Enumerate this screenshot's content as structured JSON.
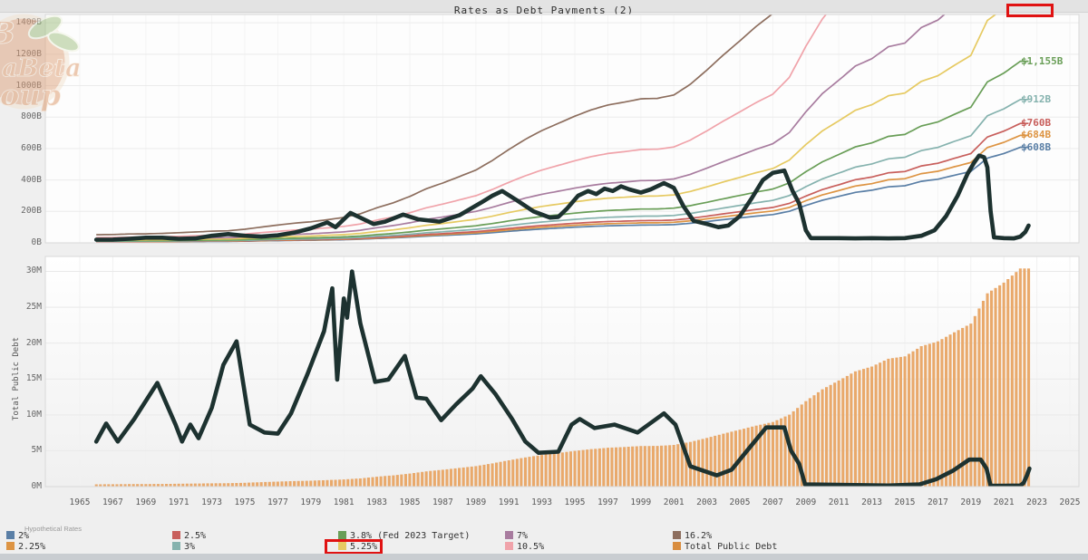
{
  "chart_title": "Rates as Debt Payments (2)",
  "watermark": {
    "visible_text_top": "aBeta",
    "visible_text_bottom": "oup"
  },
  "annotations": {
    "top_right_box": "empty red box at top-right where the 5.25% line exits the chart",
    "legend_box_target": "5.25%"
  },
  "legend": {
    "header": "Hypothetical Rates",
    "items": [
      {
        "label": "2%",
        "color": "#5a7fa6",
        "col": 0,
        "row": 0,
        "highlighted": false
      },
      {
        "label": "2.25%",
        "color": "#dd9443",
        "col": 0,
        "row": 1,
        "highlighted": false
      },
      {
        "label": "2.5%",
        "color": "#c85f5c",
        "col": 1,
        "row": 0,
        "highlighted": false
      },
      {
        "label": "3%",
        "color": "#85b2ae",
        "col": 1,
        "row": 1,
        "highlighted": false
      },
      {
        "label": "3.8% (Fed 2023 Target)",
        "color": "#699e57",
        "col": 2,
        "row": 0,
        "highlighted": false
      },
      {
        "label": "5.25%",
        "color": "#e6ca62",
        "col": 2,
        "row": 1,
        "highlighted": true
      },
      {
        "label": "7%",
        "color": "#a87c9f",
        "col": 3,
        "row": 0,
        "highlighted": false
      },
      {
        "label": "10.5%",
        "color": "#f0a3aa",
        "col": 3,
        "row": 1,
        "highlighted": false
      },
      {
        "label": "16.2%",
        "color": "#8d6e5e",
        "col": 4,
        "row": 0,
        "highlighted": false
      },
      {
        "label": "Total Public Debt",
        "color": "#d98d3f",
        "col": 4,
        "row": 1,
        "highlighted": false
      }
    ]
  },
  "chart_data": [
    {
      "type": "line",
      "title": "Rates as Debt Payments (2)",
      "ylabel": "",
      "y_ticks": [
        "0B",
        "200B",
        "400B",
        "600B",
        "800B",
        "1000B",
        "1200B",
        "1400B"
      ],
      "ylim_B": [
        0,
        1455
      ],
      "x_range": [
        1965,
        2025
      ],
      "grid": true,
      "legend_position": "bottom",
      "rule": "payment($B) = rate% x Total Public Debt($T) x 10",
      "rate_series": [
        {
          "label": "2%",
          "rate_pct": 2,
          "color": "#5a7fa6",
          "end_label": "$608B",
          "end_value_B": 608,
          "exits_top": false
        },
        {
          "label": "2.25%",
          "rate_pct": 2.25,
          "color": "#dd9443",
          "end_label": "$684B",
          "end_value_B": 684,
          "exits_top": false
        },
        {
          "label": "2.5%",
          "rate_pct": 2.5,
          "color": "#c85f5c",
          "end_label": "$760B",
          "end_value_B": 760,
          "exits_top": false
        },
        {
          "label": "3%",
          "rate_pct": 3,
          "color": "#85b2ae",
          "end_label": "$912B",
          "end_value_B": 912,
          "exits_top": false
        },
        {
          "label": "3.8% (Fed 2023 Target)",
          "rate_pct": 3.8,
          "color": "#699e57",
          "end_label": "$1,155B",
          "end_value_B": 1155,
          "exits_top": false
        },
        {
          "label": "5.25%",
          "rate_pct": 5.25,
          "color": "#e6ca62",
          "end_label": "",
          "end_value_B": null,
          "exits_top": true
        },
        {
          "label": "7%",
          "rate_pct": 7,
          "color": "#a87c9f",
          "end_label": "",
          "end_value_B": null,
          "exits_top": true
        },
        {
          "label": "10.5%",
          "rate_pct": 10.5,
          "color": "#f0a3aa",
          "end_label": "",
          "end_value_B": null,
          "exits_top": true
        },
        {
          "label": "16.2%",
          "rate_pct": 16.2,
          "color": "#8d6e5e",
          "end_label": "",
          "end_value_B": null,
          "exits_top": true
        }
      ],
      "black_line": {
        "name": "unlabeled-actual-payments-line",
        "color": "#1d3230",
        "unit": "$B",
        "points": [
          [
            1966,
            20
          ],
          [
            1967,
            21
          ],
          [
            1968,
            26
          ],
          [
            1969,
            33
          ],
          [
            1970,
            33
          ],
          [
            1971,
            26
          ],
          [
            1972,
            28
          ],
          [
            1973,
            45
          ],
          [
            1974,
            56
          ],
          [
            1975,
            45
          ],
          [
            1976,
            40
          ],
          [
            1977,
            48
          ],
          [
            1978,
            65
          ],
          [
            1979,
            92
          ],
          [
            1980,
            130
          ],
          [
            1980.5,
            100
          ],
          [
            1981.4,
            190
          ],
          [
            1982,
            160
          ],
          [
            1982.8,
            120
          ],
          [
            1983.5,
            135
          ],
          [
            1984.6,
            180
          ],
          [
            1985.5,
            150
          ],
          [
            1986.8,
            135
          ],
          [
            1988,
            175
          ],
          [
            1989.3,
            255
          ],
          [
            1990,
            300
          ],
          [
            1990.6,
            330
          ],
          [
            1991.5,
            270
          ],
          [
            1992.5,
            200
          ],
          [
            1993.5,
            160
          ],
          [
            1994,
            165
          ],
          [
            1994.5,
            215
          ],
          [
            1995.2,
            300
          ],
          [
            1995.8,
            330
          ],
          [
            1996.3,
            310
          ],
          [
            1996.8,
            345
          ],
          [
            1997.3,
            330
          ],
          [
            1997.8,
            360
          ],
          [
            1998.3,
            340
          ],
          [
            1999,
            320
          ],
          [
            1999.6,
            340
          ],
          [
            2000.4,
            380
          ],
          [
            2001,
            350
          ],
          [
            2001.6,
            230
          ],
          [
            2002.2,
            140
          ],
          [
            2003,
            120
          ],
          [
            2003.7,
            100
          ],
          [
            2004.3,
            110
          ],
          [
            2005,
            170
          ],
          [
            2005.7,
            280
          ],
          [
            2006.4,
            400
          ],
          [
            2007,
            445
          ],
          [
            2007.7,
            460
          ],
          [
            2008.2,
            330
          ],
          [
            2008.6,
            250
          ],
          [
            2009,
            80
          ],
          [
            2009.3,
            30
          ],
          [
            2010,
            30
          ],
          [
            2011,
            30
          ],
          [
            2012,
            28
          ],
          [
            2013,
            30
          ],
          [
            2014,
            28
          ],
          [
            2015,
            30
          ],
          [
            2016,
            45
          ],
          [
            2016.8,
            80
          ],
          [
            2017.5,
            170
          ],
          [
            2018.2,
            300
          ],
          [
            2018.8,
            440
          ],
          [
            2019.2,
            510
          ],
          [
            2019.5,
            555
          ],
          [
            2019.8,
            545
          ],
          [
            2020,
            480
          ],
          [
            2020.2,
            200
          ],
          [
            2020.4,
            35
          ],
          [
            2021,
            30
          ],
          [
            2021.6,
            28
          ],
          [
            2022,
            40
          ],
          [
            2022.3,
            70
          ],
          [
            2022.5,
            110
          ]
        ]
      }
    },
    {
      "type": "bar+line",
      "ylabel": "Total Public Debt",
      "y_ticks": [
        "0M",
        "5M",
        "10M",
        "15M",
        "20M",
        "25M",
        "30M"
      ],
      "ylim_M": [
        0,
        32
      ],
      "x_ticks": [
        1965,
        1967,
        1969,
        1971,
        1973,
        1975,
        1977,
        1979,
        1981,
        1983,
        1985,
        1987,
        1989,
        1991,
        1993,
        1995,
        1997,
        1999,
        2001,
        2003,
        2005,
        2007,
        2009,
        2011,
        2013,
        2015,
        2017,
        2019,
        2021,
        2023,
        2025
      ],
      "grid": true,
      "bars": {
        "name": "Total Public Debt",
        "color": "#e9a96b",
        "unit": "$T (axis labeled in M = millions of dollars)",
        "years": [
          1966,
          1967,
          1968,
          1969,
          1970,
          1971,
          1972,
          1973,
          1974,
          1975,
          1976,
          1977,
          1978,
          1979,
          1980,
          1981,
          1982,
          1983,
          1984,
          1985,
          1986,
          1987,
          1988,
          1989,
          1990,
          1991,
          1992,
          1993,
          1994,
          1995,
          1996,
          1997,
          1998,
          1999,
          2000,
          2001,
          2002,
          2003,
          2004,
          2005,
          2006,
          2007,
          2008,
          2009,
          2010,
          2011,
          2012,
          2013,
          2014,
          2015,
          2016,
          2017,
          2018,
          2019,
          2020,
          2021,
          2022,
          2022.5
        ],
        "values_T": [
          0.32,
          0.326,
          0.348,
          0.354,
          0.371,
          0.398,
          0.427,
          0.458,
          0.475,
          0.533,
          0.62,
          0.699,
          0.772,
          0.827,
          0.908,
          0.998,
          1.142,
          1.377,
          1.572,
          1.823,
          2.125,
          2.35,
          2.602,
          2.857,
          3.233,
          3.665,
          4.065,
          4.411,
          4.693,
          4.974,
          5.225,
          5.413,
          5.526,
          5.656,
          5.674,
          5.807,
          6.228,
          6.783,
          7.379,
          7.933,
          8.507,
          9.008,
          10.025,
          11.91,
          13.562,
          14.79,
          16.066,
          16.738,
          17.824,
          18.151,
          19.573,
          20.245,
          21.516,
          22.719,
          26.945,
          28.429,
          30.4,
          30.4
        ]
      },
      "black_line": {
        "name": "unlabeled-rate-line",
        "color": "#1d3230",
        "unit": "percent",
        "axis_scale_M_per_pct": 1.57,
        "points": [
          [
            1966,
            4.0
          ],
          [
            1966.6,
            5.6
          ],
          [
            1967.3,
            4.0
          ],
          [
            1968.3,
            6.0
          ],
          [
            1969.7,
            9.2
          ],
          [
            1970.8,
            5.5
          ],
          [
            1971.2,
            4.0
          ],
          [
            1971.7,
            5.5
          ],
          [
            1972.2,
            4.3
          ],
          [
            1973,
            7.0
          ],
          [
            1973.7,
            10.8
          ],
          [
            1974.5,
            12.9
          ],
          [
            1975.3,
            5.5
          ],
          [
            1976.2,
            4.8
          ],
          [
            1977,
            4.7
          ],
          [
            1977.8,
            6.5
          ],
          [
            1978.8,
            10.0
          ],
          [
            1979.8,
            13.8
          ],
          [
            1980.3,
            17.6
          ],
          [
            1980.6,
            9.5
          ],
          [
            1981,
            16.7
          ],
          [
            1981.2,
            15.0
          ],
          [
            1981.5,
            19.1
          ],
          [
            1982,
            14.5
          ],
          [
            1982.9,
            9.3
          ],
          [
            1983.7,
            9.5
          ],
          [
            1984.7,
            11.6
          ],
          [
            1985.4,
            7.9
          ],
          [
            1986,
            7.8
          ],
          [
            1986.9,
            5.9
          ],
          [
            1987.8,
            7.3
          ],
          [
            1988.8,
            8.7
          ],
          [
            1989.3,
            9.8
          ],
          [
            1990.2,
            8.2
          ],
          [
            1991.2,
            6.0
          ],
          [
            1992,
            4.0
          ],
          [
            1992.8,
            3.0
          ],
          [
            1994,
            3.1
          ],
          [
            1994.8,
            5.5
          ],
          [
            1995.3,
            6.0
          ],
          [
            1996.2,
            5.2
          ],
          [
            1997.4,
            5.5
          ],
          [
            1998.8,
            4.8
          ],
          [
            2000.4,
            6.5
          ],
          [
            2001.1,
            5.5
          ],
          [
            2002,
            1.8
          ],
          [
            2003.6,
            1.0
          ],
          [
            2004.5,
            1.5
          ],
          [
            2005.5,
            3.3
          ],
          [
            2006.6,
            5.25
          ],
          [
            2007.7,
            5.25
          ],
          [
            2008.1,
            3.2
          ],
          [
            2008.6,
            2.0
          ],
          [
            2008.95,
            0.2
          ],
          [
            2010,
            0.18
          ],
          [
            2012,
            0.14
          ],
          [
            2014,
            0.1
          ],
          [
            2015.9,
            0.2
          ],
          [
            2016.9,
            0.66
          ],
          [
            2017.9,
            1.4
          ],
          [
            2018.9,
            2.4
          ],
          [
            2019.6,
            2.4
          ],
          [
            2019.95,
            1.6
          ],
          [
            2020.2,
            0.07
          ],
          [
            2021,
            0.08
          ],
          [
            2022,
            0.1
          ],
          [
            2022.2,
            0.33
          ],
          [
            2022.4,
            1.0
          ],
          [
            2022.55,
            1.6
          ]
        ]
      }
    }
  ]
}
